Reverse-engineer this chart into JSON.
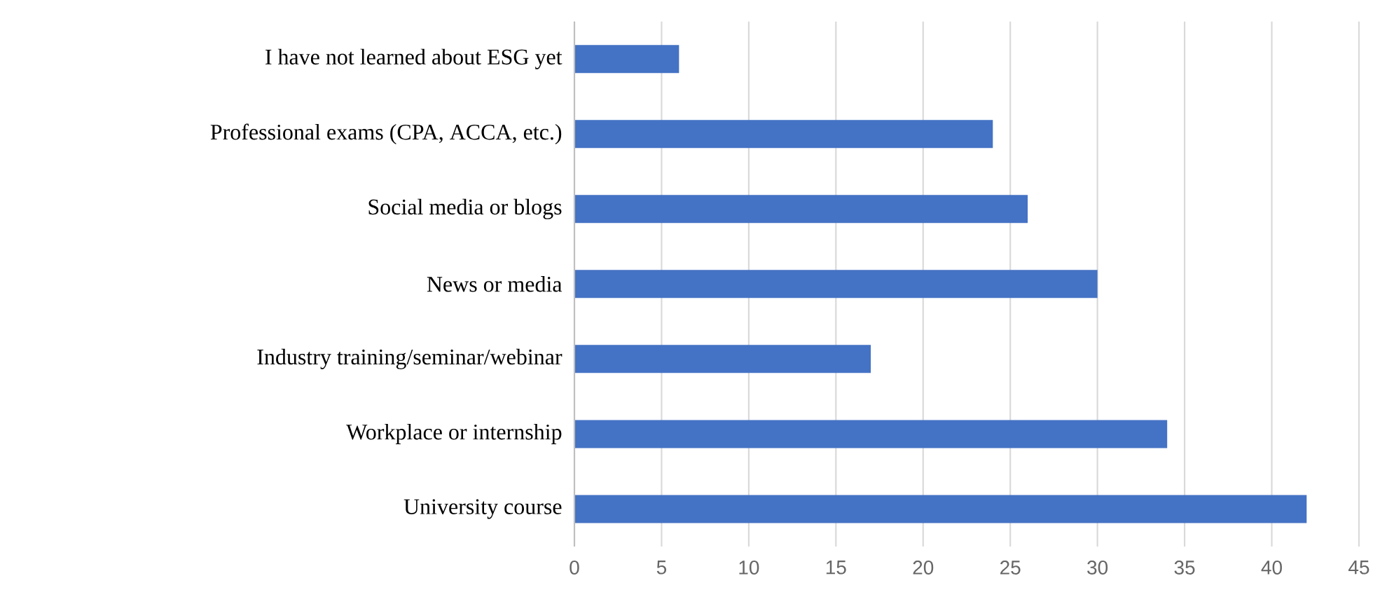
{
  "chart_data": {
    "type": "bar",
    "orientation": "horizontal",
    "categories": [
      "I have not learned about ESG yet",
      "Professional exams (CPA, ACCA, etc.)",
      "Social media or blogs",
      "News or media",
      "Industry training/seminar/webinar",
      "Workplace or internship",
      "University course"
    ],
    "values": [
      6,
      24,
      26,
      30,
      17,
      34,
      42
    ],
    "color": "#4472c4",
    "xlim": [
      0,
      45
    ],
    "xticks": [
      0,
      5,
      10,
      15,
      20,
      25,
      30,
      35,
      40,
      45
    ],
    "grid": "x"
  }
}
